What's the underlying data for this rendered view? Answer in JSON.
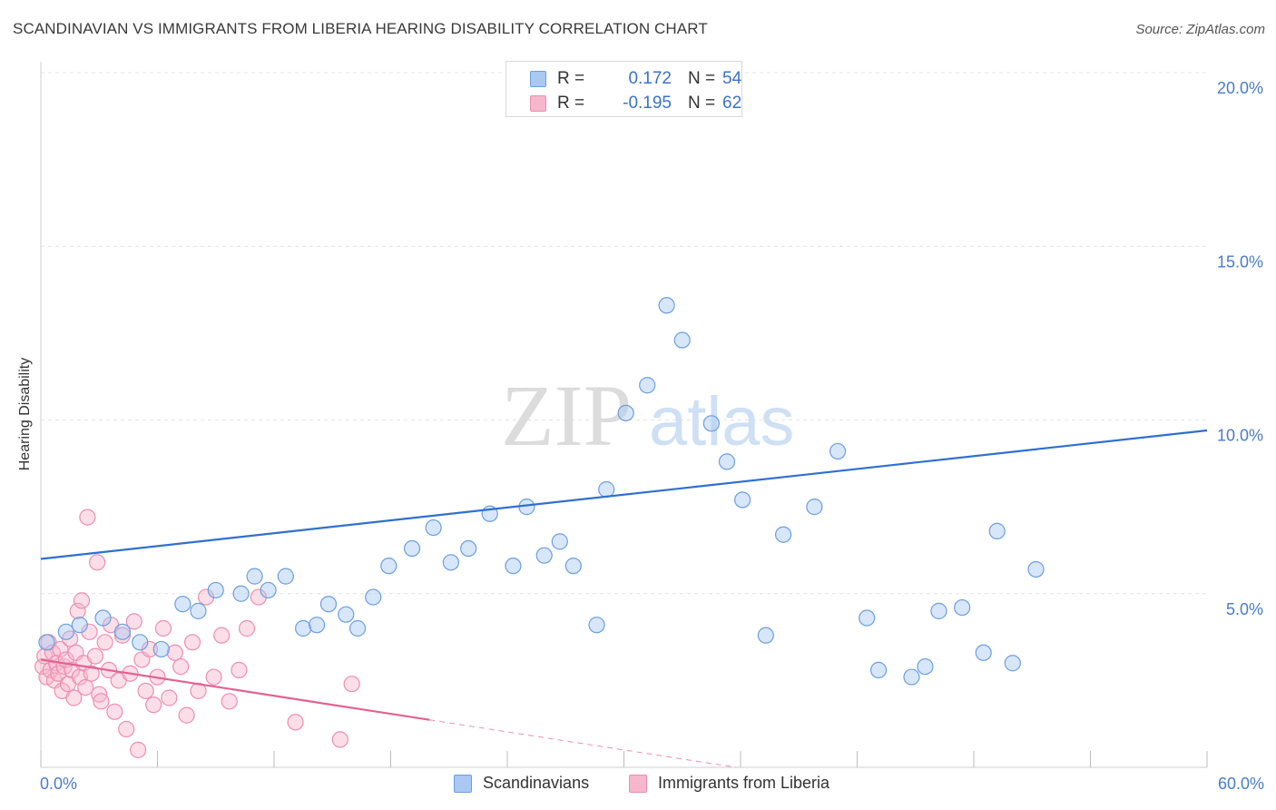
{
  "title": "SCANDINAVIAN VS IMMIGRANTS FROM LIBERIA HEARING DISABILITY CORRELATION CHART",
  "source": "Source: ZipAtlas.com",
  "watermark": {
    "zip": "ZIP",
    "atlas": "atlas"
  },
  "legend": {
    "rows": [
      {
        "r_label": "R =",
        "r_value": "0.172",
        "n_label": "N =",
        "n_value": "54"
      },
      {
        "r_label": "R =",
        "r_value": "-0.195",
        "n_label": "N =",
        "n_value": "62"
      }
    ]
  },
  "bottom_legend": {
    "series1": "Scandinavians",
    "series2": "Immigrants from Liberia"
  },
  "colors": {
    "blue_fill": "#a9c8f2",
    "blue_stroke": "#6b9fe0",
    "blue_line": "#2f6fd1",
    "pink_fill": "#f7b6cc",
    "pink_stroke": "#ec8fb0",
    "pink_line": "#e2628f",
    "axis_label": "#4a7cc9",
    "grid": "#e4e4e4"
  },
  "chart_data": {
    "type": "scatter",
    "title": "SCANDINAVIAN VS IMMIGRANTS FROM LIBERIA HEARING DISABILITY CORRELATION CHART",
    "xlabel": "",
    "ylabel": "Hearing Disability",
    "xlim": [
      0,
      60
    ],
    "ylim": [
      0,
      20
    ],
    "x_ticks": [
      "0.0%",
      "60.0%"
    ],
    "y_ticks": [
      {
        "value": 5,
        "label": "5.0%"
      },
      {
        "value": 10,
        "label": "10.0%"
      },
      {
        "value": 15,
        "label": "15.0%"
      },
      {
        "value": 20,
        "label": "20.0%"
      }
    ],
    "grid": true,
    "series": [
      {
        "name": "Scandinavians",
        "r": 0.172,
        "n": 54,
        "trend": {
          "x": [
            0,
            60
          ],
          "y": [
            6.0,
            9.7
          ],
          "solid_until": 60
        },
        "points": [
          [
            0.3,
            3.6
          ],
          [
            1.3,
            3.9
          ],
          [
            2.0,
            4.1
          ],
          [
            3.2,
            4.3
          ],
          [
            4.2,
            3.9
          ],
          [
            5.1,
            3.6
          ],
          [
            6.2,
            3.4
          ],
          [
            7.3,
            4.7
          ],
          [
            8.1,
            4.5
          ],
          [
            9.0,
            5.1
          ],
          [
            10.3,
            5.0
          ],
          [
            11.0,
            5.5
          ],
          [
            11.7,
            5.1
          ],
          [
            12.6,
            5.5
          ],
          [
            13.5,
            4.0
          ],
          [
            14.2,
            4.1
          ],
          [
            14.8,
            4.7
          ],
          [
            15.7,
            4.4
          ],
          [
            16.3,
            4.0
          ],
          [
            17.1,
            4.9
          ],
          [
            17.9,
            5.8
          ],
          [
            19.1,
            6.3
          ],
          [
            20.2,
            6.9
          ],
          [
            21.1,
            5.9
          ],
          [
            22.0,
            6.3
          ],
          [
            23.1,
            7.3
          ],
          [
            24.3,
            5.8
          ],
          [
            25.0,
            7.5
          ],
          [
            25.9,
            6.1
          ],
          [
            26.7,
            6.5
          ],
          [
            27.4,
            5.8
          ],
          [
            28.6,
            4.1
          ],
          [
            29.1,
            8.0
          ],
          [
            30.1,
            10.2
          ],
          [
            31.2,
            11.0
          ],
          [
            32.2,
            13.3
          ],
          [
            33.0,
            12.3
          ],
          [
            34.5,
            9.9
          ],
          [
            35.3,
            8.8
          ],
          [
            36.1,
            7.7
          ],
          [
            37.3,
            3.8
          ],
          [
            38.2,
            6.7
          ],
          [
            39.8,
            7.5
          ],
          [
            41.0,
            9.1
          ],
          [
            42.5,
            4.3
          ],
          [
            43.1,
            2.8
          ],
          [
            44.8,
            2.6
          ],
          [
            45.5,
            2.9
          ],
          [
            46.2,
            4.5
          ],
          [
            47.4,
            4.6
          ],
          [
            48.5,
            3.3
          ],
          [
            49.2,
            6.8
          ],
          [
            50.0,
            3.0
          ],
          [
            51.2,
            5.7
          ]
        ]
      },
      {
        "name": "Immigrants from Liberia",
        "r": -0.195,
        "n": 62,
        "trend": {
          "x": [
            0,
            60
          ],
          "y": [
            3.1,
            -2.1
          ],
          "solid_until": 20
        },
        "points": [
          [
            0.1,
            2.9
          ],
          [
            0.2,
            3.2
          ],
          [
            0.3,
            2.6
          ],
          [
            0.4,
            3.6
          ],
          [
            0.5,
            2.8
          ],
          [
            0.6,
            3.3
          ],
          [
            0.7,
            2.5
          ],
          [
            0.8,
            3.0
          ],
          [
            0.9,
            2.7
          ],
          [
            1.0,
            3.4
          ],
          [
            1.1,
            2.2
          ],
          [
            1.2,
            2.9
          ],
          [
            1.3,
            3.1
          ],
          [
            1.4,
            2.4
          ],
          [
            1.5,
            3.7
          ],
          [
            1.6,
            2.8
          ],
          [
            1.7,
            2.0
          ],
          [
            1.8,
            3.3
          ],
          [
            1.9,
            4.5
          ],
          [
            2.0,
            2.6
          ],
          [
            2.1,
            4.8
          ],
          [
            2.2,
            3.0
          ],
          [
            2.3,
            2.3
          ],
          [
            2.4,
            7.2
          ],
          [
            2.5,
            3.9
          ],
          [
            2.6,
            2.7
          ],
          [
            2.8,
            3.2
          ],
          [
            2.9,
            5.9
          ],
          [
            3.0,
            2.1
          ],
          [
            3.1,
            1.9
          ],
          [
            3.3,
            3.6
          ],
          [
            3.5,
            2.8
          ],
          [
            3.6,
            4.1
          ],
          [
            3.8,
            1.6
          ],
          [
            4.0,
            2.5
          ],
          [
            4.2,
            3.8
          ],
          [
            4.4,
            1.1
          ],
          [
            4.6,
            2.7
          ],
          [
            4.8,
            4.2
          ],
          [
            5.0,
            0.5
          ],
          [
            5.2,
            3.1
          ],
          [
            5.4,
            2.2
          ],
          [
            5.6,
            3.4
          ],
          [
            5.8,
            1.8
          ],
          [
            6.0,
            2.6
          ],
          [
            6.3,
            4.0
          ],
          [
            6.6,
            2.0
          ],
          [
            6.9,
            3.3
          ],
          [
            7.2,
            2.9
          ],
          [
            7.5,
            1.5
          ],
          [
            7.8,
            3.6
          ],
          [
            8.1,
            2.2
          ],
          [
            8.5,
            4.9
          ],
          [
            8.9,
            2.6
          ],
          [
            9.3,
            3.8
          ],
          [
            9.7,
            1.9
          ],
          [
            10.2,
            2.8
          ],
          [
            10.6,
            4.0
          ],
          [
            11.2,
            4.9
          ],
          [
            13.1,
            1.3
          ],
          [
            15.4,
            0.8
          ],
          [
            16.0,
            2.4
          ]
        ]
      }
    ]
  }
}
